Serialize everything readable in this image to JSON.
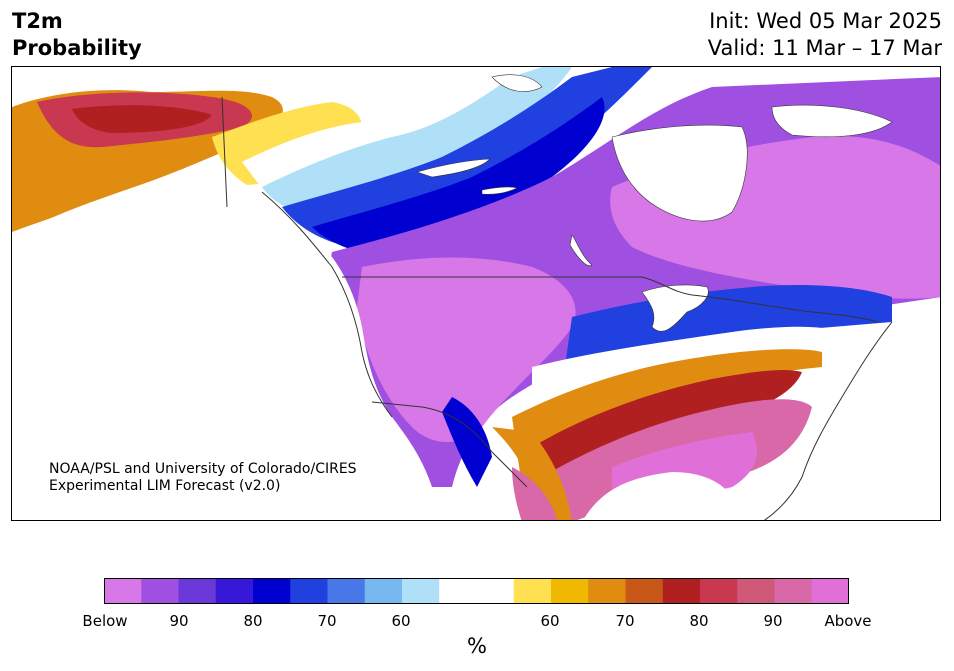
{
  "title": {
    "line1": "T2m",
    "line2": "Probability"
  },
  "init": "Init: Wed 05 Mar 2025",
  "valid": "Valid: 11 Mar – 17 Mar",
  "credit": {
    "line1": "NOAA/PSL and University of Colorado/CIRES",
    "line2": "Experimental LIM Forecast (v2.0)"
  },
  "colorbar": {
    "colors": [
      "#d878e8",
      "#a050e0",
      "#6a38d8",
      "#3818d8",
      "#0000d0",
      "#2040e0",
      "#4878e8",
      "#78b8f0",
      "#b0e0f8",
      "#ffffff",
      "#ffffff",
      "#ffe050",
      "#f0b800",
      "#e08c10",
      "#c85818",
      "#b02020",
      "#c83850",
      "#d05878",
      "#d868a8",
      "#e070d8"
    ],
    "ticks": [
      "Below",
      "90",
      "80",
      "70",
      "60",
      "60",
      "70",
      "80",
      "90",
      "Above"
    ],
    "unit": "%"
  },
  "legend_colors": {
    "below_high": "#d878e8",
    "below_mid": "#a050e0",
    "below_strong": "#0000d0",
    "below_weak": "#78b8f0",
    "neutral": "#ffffff",
    "above_weak": "#ffe050",
    "above_mid": "#e08c10",
    "above_strong": "#b02020",
    "above_high": "#e070d8"
  }
}
